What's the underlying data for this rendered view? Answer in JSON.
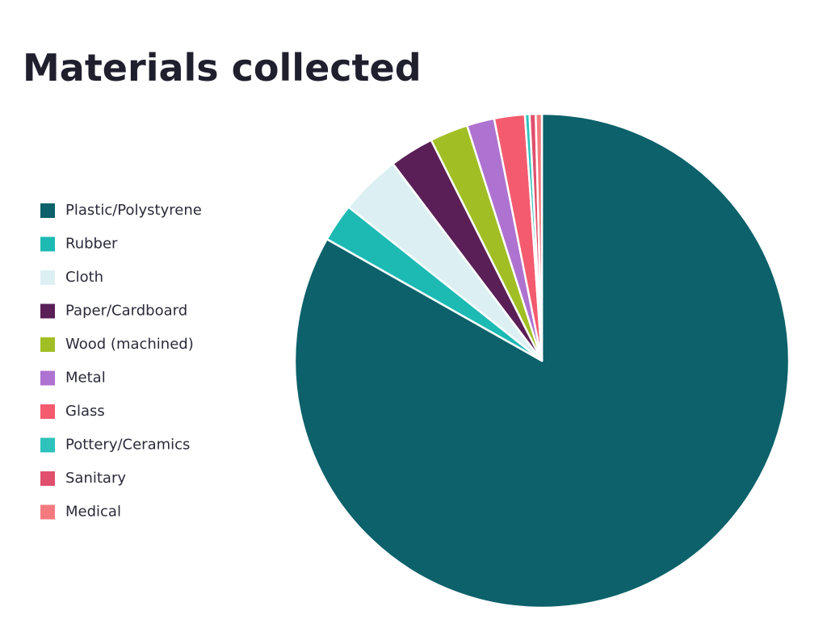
{
  "chart_data": {
    "type": "pie",
    "title": "Materials collected",
    "categories": [
      "Plastic/Polystyrene",
      "Rubber",
      "Cloth",
      "Paper/Cardboard",
      "Wood (machined)",
      "Metal",
      "Glass",
      "Pottery/Ceramics",
      "Sanitary",
      "Medical"
    ],
    "values": [
      83.2,
      2.5,
      4.0,
      2.9,
      2.5,
      1.8,
      2.0,
      0.3,
      0.4,
      0.4
    ],
    "colors": [
      "#0c616a",
      "#1dbab4",
      "#dcf0f3",
      "#5a1f57",
      "#a1bf25",
      "#ae72d0",
      "#f45b6e",
      "#2dc2bc",
      "#e0506e",
      "#f47a80"
    ],
    "legend": "left"
  }
}
